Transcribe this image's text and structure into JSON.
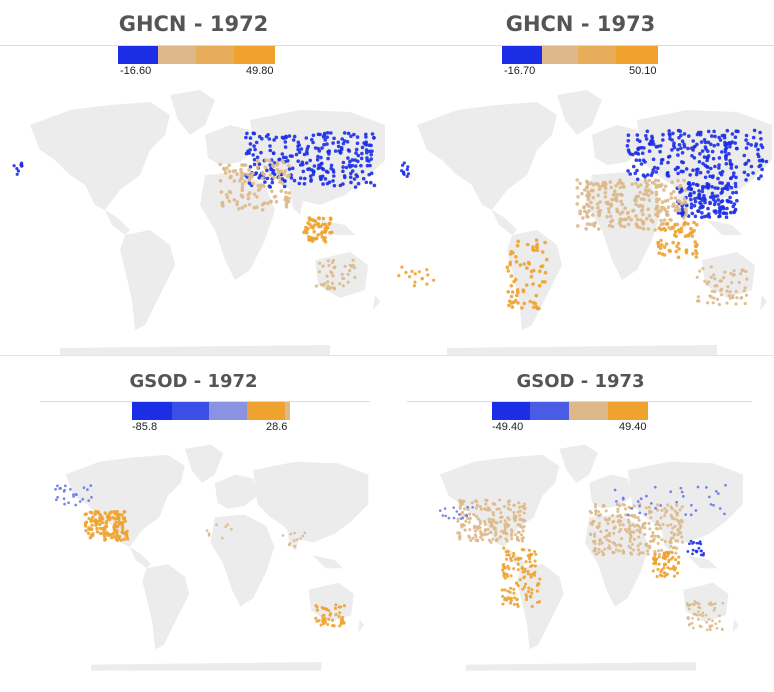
{
  "panels": [
    {
      "id": "p1",
      "title": "GHCN - 1972",
      "legend_min": "-16.60",
      "legend_max": "49.80"
    },
    {
      "id": "p2",
      "title": "GHCN - 1973",
      "legend_min": "-16.70",
      "legend_max": "50.10"
    },
    {
      "id": "p3",
      "title": "GSOD - 1972",
      "legend_min": "-85.8",
      "legend_max": "28.6"
    },
    {
      "id": "p4",
      "title": "GSOD - 1973",
      "legend_min": "-49.40",
      "legend_max": "49.40"
    }
  ],
  "colors": {
    "land": "#ececec",
    "cold": "#1b2ee6",
    "cold_light": "#6a78e8",
    "mid": "#ddb98a",
    "warm": "#f0a22e",
    "title": "#555555"
  }
}
